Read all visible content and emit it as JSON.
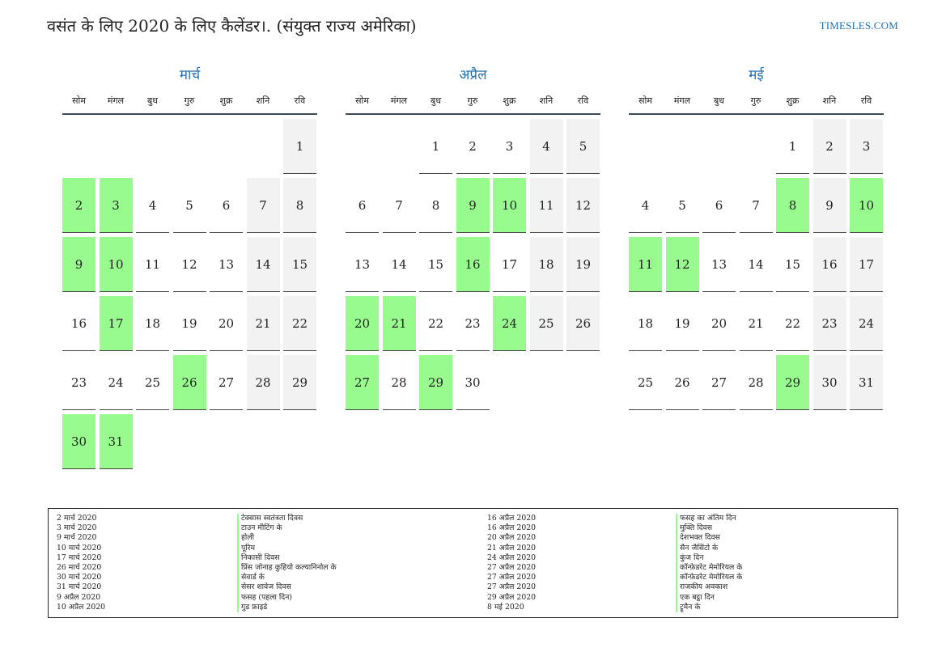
{
  "title": "वसंत के लिए 2020 के लिए कैलेंडर।. (संयुक्त राज्य अमेरिका)",
  "brand": "TIMESLES.COM",
  "colors": {
    "accent": "#1f6fb2",
    "holiday": "#98fb8e",
    "weekend": "#f2f2f2"
  },
  "weekdays": [
    "सोम",
    "मंगल",
    "बुध",
    "गुरु",
    "शुक्र",
    "शनि",
    "रवि"
  ],
  "months": [
    {
      "name": "मार्च",
      "weeks": [
        [
          null,
          null,
          null,
          null,
          null,
          null,
          1
        ],
        [
          2,
          3,
          4,
          5,
          6,
          7,
          8
        ],
        [
          9,
          10,
          11,
          12,
          13,
          14,
          15
        ],
        [
          16,
          17,
          18,
          19,
          20,
          21,
          22
        ],
        [
          23,
          24,
          25,
          26,
          27,
          28,
          29
        ],
        [
          30,
          31,
          null,
          null,
          null,
          null,
          null
        ]
      ],
      "holidays": [
        2,
        3,
        9,
        10,
        17,
        26,
        30,
        31
      ]
    },
    {
      "name": "अप्रैल",
      "weeks": [
        [
          null,
          null,
          1,
          2,
          3,
          4,
          5
        ],
        [
          6,
          7,
          8,
          9,
          10,
          11,
          12
        ],
        [
          13,
          14,
          15,
          16,
          17,
          18,
          19
        ],
        [
          20,
          21,
          22,
          23,
          24,
          25,
          26
        ],
        [
          27,
          28,
          29,
          30,
          null,
          null,
          null
        ]
      ],
      "holidays": [
        9,
        10,
        16,
        20,
        21,
        24,
        27,
        29
      ]
    },
    {
      "name": "मई",
      "weeks": [
        [
          null,
          null,
          null,
          null,
          1,
          2,
          3
        ],
        [
          4,
          5,
          6,
          7,
          8,
          9,
          10
        ],
        [
          11,
          12,
          13,
          14,
          15,
          16,
          17
        ],
        [
          18,
          19,
          20,
          21,
          22,
          23,
          24
        ],
        [
          25,
          26,
          27,
          28,
          29,
          30,
          31
        ]
      ],
      "holidays": [
        8,
        10,
        11,
        12,
        29
      ]
    }
  ],
  "legend": {
    "dates_left": [
      "2 मार्च 2020",
      "3 मार्च 2020",
      "9 मार्च 2020",
      "10 मार्च 2020",
      "17 मार्च 2020",
      "26 मार्च 2020",
      "30 मार्च 2020",
      "31 मार्च 2020",
      "9 अप्रैल 2020",
      "10 अप्रैल 2020"
    ],
    "names_left": [
      "टेक्सास स्वतंत्रता दिवस",
      "टाउन मीटिंग के",
      "होली",
      "पूरिम",
      "निकासी दिवस",
      "प्रिंस जोनाह कुहियो कल्यानिनोल के",
      "सेवार्ड के",
      "सेसर शावेज दिवस",
      "फसह (पहला दिन)",
      "गुड फ्राइडे"
    ],
    "dates_right": [
      "16 अप्रैल 2020",
      "16 अप्रैल 2020",
      "20 अप्रैल 2020",
      "21 अप्रैल 2020",
      "24 अप्रैल 2020",
      "27 अप्रैल 2020",
      "27 अप्रैल 2020",
      "27 अप्रैल 2020",
      "29 अप्रैल 2020",
      "8 मई 2020"
    ],
    "names_right": [
      "फसह का अंतिम दिन",
      "मुक्ति दिवस",
      "देशभक्त दिवस",
      "सैन जैसिंटो के",
      "कुंज दिन",
      "कॉन्फ़ेडरेट मेमोरियल के",
      "कॉन्फ़ेडरेट मेमोरियल के",
      "राजकीय अवकाश",
      "एक बट्ठा दिन",
      "ट्रूमैन के"
    ]
  }
}
